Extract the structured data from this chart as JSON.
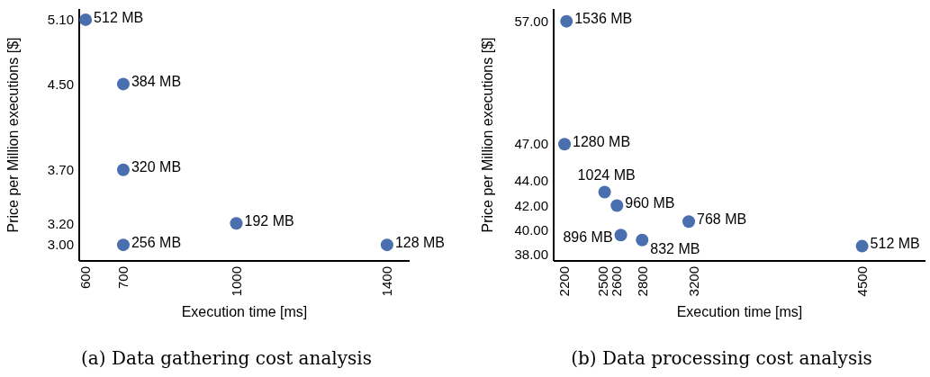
{
  "chart_data": [
    {
      "type": "scatter",
      "title": "(a) Data gathering cost analysis",
      "xlabel": "Execution time [ms]",
      "ylabel": "Price per Million executions [$]",
      "x": [
        600,
        700,
        700,
        700,
        1000,
        1400
      ],
      "values": [
        5.1,
        4.5,
        3.7,
        3.0,
        3.2,
        3.0
      ],
      "color": "#4a6fae",
      "marker": "circle",
      "xlim": [
        583,
        1460
      ],
      "ylim": [
        2.85,
        5.2
      ],
      "xticks": [
        600,
        700,
        1000,
        1400
      ],
      "yticks": [
        {
          "value": 3.0,
          "label": "3.00"
        },
        {
          "value": 3.2,
          "label": "3.20"
        },
        {
          "value": 3.7,
          "label": "3.70"
        },
        {
          "value": 4.5,
          "label": "4.50"
        },
        {
          "value": 5.1,
          "label": "5.10"
        }
      ],
      "grid": false,
      "annotations": [
        {
          "text": "512 MB",
          "x": 600,
          "y": 5.1
        },
        {
          "text": "384 MB",
          "x": 700,
          "y": 4.5
        },
        {
          "text": "320 MB",
          "x": 700,
          "y": 3.7
        },
        {
          "text": "256 MB",
          "x": 700,
          "y": 3.0
        },
        {
          "text": "192 MB",
          "x": 1000,
          "y": 3.2
        },
        {
          "text": "128 MB",
          "x": 1400,
          "y": 3.0
        }
      ]
    },
    {
      "type": "scatter",
      "title": "(b) Data processing cost analysis",
      "xlabel": "Execution time [ms]",
      "ylabel": "Price per Million executions [$]",
      "x": [
        2215,
        2200,
        2510,
        2605,
        2635,
        2800,
        3160,
        4500
      ],
      "values": [
        57,
        47,
        43.1,
        42,
        39.6,
        39.2,
        40.7,
        38.7
      ],
      "color": "#4a6fae",
      "marker": "circle",
      "xlim": [
        2116,
        4990
      ],
      "ylim": [
        37.5,
        58
      ],
      "xticks": [
        2200,
        2500,
        2600,
        2800,
        3200,
        4500
      ],
      "yticks": [
        {
          "value": 38,
          "label": "38.00"
        },
        {
          "value": 40,
          "label": "40.00"
        },
        {
          "value": 42,
          "label": "42.00"
        },
        {
          "value": 44,
          "label": "44.00"
        },
        {
          "value": 47,
          "label": "47.00"
        },
        {
          "value": 57,
          "label": "57.00"
        }
      ],
      "grid": false,
      "annotations": [
        {
          "text": "1536 MB",
          "x": 2215,
          "y": 57
        },
        {
          "text": "1280 MB",
          "x": 2200,
          "y": 47
        },
        {
          "text": "1024 MB",
          "x": 2510,
          "y": 43.1
        },
        {
          "text": "960 MB",
          "x": 2605,
          "y": 42
        },
        {
          "text": "896 MB",
          "x": 2635,
          "y": 39.6
        },
        {
          "text": "832 MB",
          "x": 2800,
          "y": 39.2
        },
        {
          "text": "768 MB",
          "x": 3160,
          "y": 40.7
        },
        {
          "text": "512 MB",
          "x": 4500,
          "y": 38.7
        }
      ]
    }
  ]
}
